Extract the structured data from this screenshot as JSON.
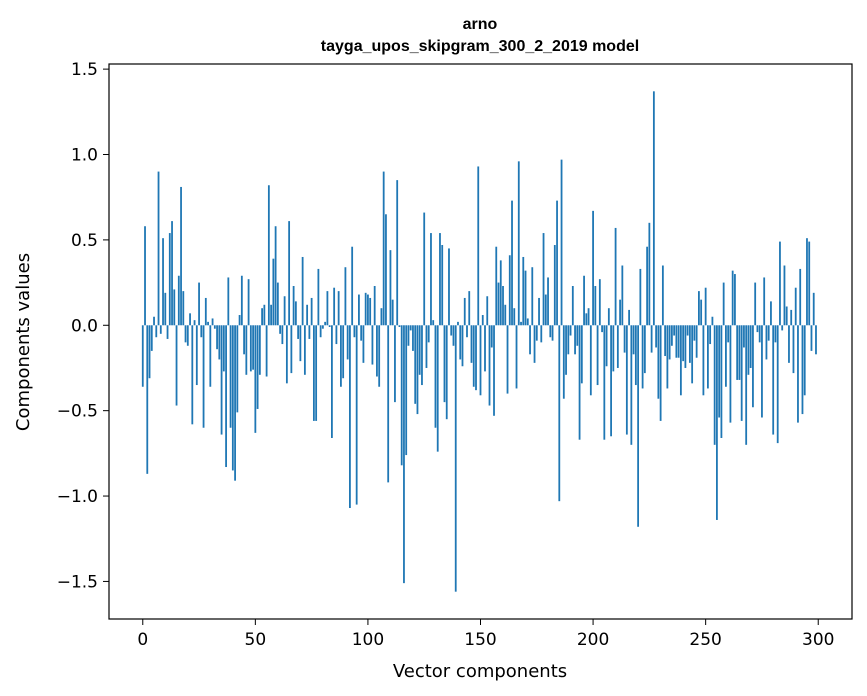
{
  "chart_data": {
    "type": "bar",
    "title_line1": "arno",
    "title_line2": "tayga_upos_skipgram_300_2_2019 model",
    "xlabel": "Vector components",
    "ylabel": "Components values",
    "xlim": [
      -15,
      315
    ],
    "ylim": [
      -1.72,
      1.53
    ],
    "xticks": [
      0,
      50,
      100,
      150,
      200,
      250,
      300
    ],
    "xtick_labels": [
      "0",
      "50",
      "100",
      "150",
      "200",
      "250",
      "300"
    ],
    "yticks": [
      -1.5,
      -1.0,
      -0.5,
      0.0,
      0.5,
      1.0,
      1.5
    ],
    "ytick_labels": [
      "−1.5",
      "−1.0",
      "−0.5",
      "0.0",
      "0.5",
      "1.0",
      "1.5"
    ],
    "bar_color": "#1f77b4",
    "values": [
      -0.36,
      0.58,
      -0.87,
      -0.31,
      -0.15,
      0.05,
      -0.07,
      0.9,
      -0.05,
      0.51,
      0.19,
      -0.08,
      0.54,
      0.61,
      0.21,
      -0.47,
      0.29,
      0.81,
      0.2,
      -0.1,
      -0.12,
      0.07,
      -0.58,
      0.03,
      -0.35,
      0.25,
      -0.07,
      -0.6,
      0.16,
      0.02,
      -0.36,
      0.04,
      -0.02,
      -0.14,
      -0.2,
      -0.64,
      -0.27,
      -0.83,
      0.28,
      -0.6,
      -0.85,
      -0.91,
      -0.51,
      0.06,
      0.29,
      -0.17,
      -0.29,
      0.27,
      -0.27,
      -0.26,
      -0.63,
      -0.49,
      -0.29,
      0.1,
      0.12,
      -0.3,
      0.82,
      0.12,
      0.39,
      0.58,
      0.25,
      -0.05,
      -0.11,
      0.17,
      -0.34,
      0.61,
      -0.28,
      0.23,
      0.14,
      -0.08,
      -0.21,
      0.4,
      -0.29,
      0.12,
      -0.08,
      0.16,
      -0.56,
      -0.56,
      0.33,
      -0.07,
      -0.02,
      0.02,
      0.2,
      -0.01,
      -0.66,
      0.22,
      -0.11,
      0.2,
      -0.36,
      -0.31,
      0.34,
      -0.2,
      -1.07,
      0.46,
      -0.07,
      -1.05,
      0.18,
      -0.09,
      -0.22,
      0.19,
      0.18,
      0.16,
      -0.23,
      0.23,
      -0.3,
      -0.36,
      0.1,
      0.9,
      0.65,
      -0.92,
      0.44,
      0.15,
      -0.45,
      0.85,
      -0.01,
      -0.82,
      -1.51,
      -0.76,
      -0.12,
      -0.03,
      -0.15,
      -0.46,
      -0.52,
      -0.29,
      -0.35,
      0.66,
      -0.25,
      -0.1,
      0.54,
      0.03,
      -0.6,
      -0.74,
      0.54,
      0.47,
      -0.45,
      -0.55,
      0.45,
      -0.06,
      -0.12,
      -1.56,
      0.02,
      -0.2,
      -0.24,
      0.16,
      -0.07,
      0.2,
      -0.22,
      -0.36,
      -0.38,
      0.93,
      -0.41,
      0.06,
      -0.27,
      0.17,
      -0.47,
      -0.13,
      -0.53,
      0.46,
      0.25,
      0.38,
      0.23,
      0.12,
      -0.4,
      0.41,
      0.73,
      0.1,
      -0.37,
      0.96,
      0.02,
      0.4,
      0.32,
      0.04,
      -0.17,
      0.34,
      -0.22,
      -0.09,
      0.16,
      -0.1,
      0.54,
      0.18,
      0.28,
      -0.07,
      -0.09,
      0.47,
      0.73,
      -1.03,
      0.97,
      -0.43,
      -0.29,
      -0.17,
      -0.06,
      0.23,
      -0.17,
      -0.12,
      -0.67,
      -0.34,
      0.29,
      0.07,
      0.1,
      -0.41,
      0.67,
      0.23,
      -0.35,
      0.27,
      -0.04,
      -0.67,
      -0.24,
      0.1,
      -0.65,
      -0.27,
      0.57,
      -0.25,
      0.15,
      0.35,
      -0.16,
      -0.64,
      0.09,
      -0.7,
      -0.17,
      -0.35,
      -1.18,
      0.33,
      -0.37,
      -0.28,
      0.46,
      0.6,
      -0.16,
      1.37,
      -0.13,
      -0.43,
      -0.56,
      0.35,
      -0.18,
      -0.37,
      -0.2,
      -0.12,
      -0.06,
      -0.19,
      -0.19,
      -0.41,
      -0.21,
      -0.25,
      -0.06,
      -0.22,
      -0.34,
      -0.09,
      -0.19,
      0.2,
      0.15,
      -0.41,
      0.22,
      -0.37,
      -0.11,
      0.05,
      -0.7,
      -1.14,
      -0.54,
      -0.66,
      0.25,
      -0.36,
      -0.1,
      -0.57,
      0.32,
      0.3,
      -0.32,
      -0.32,
      -0.56,
      -0.13,
      -0.7,
      -0.29,
      -0.25,
      -0.48,
      0.25,
      -0.04,
      -0.1,
      -0.54,
      0.28,
      -0.2,
      -0.09,
      0.14,
      -0.64,
      -0.1,
      -0.69,
      0.49,
      -0.03,
      0.35,
      0.11,
      -0.22,
      0.09,
      -0.28,
      0.22,
      -0.57,
      0.33,
      -0.52,
      -0.41,
      0.51,
      0.49,
      -0.15,
      0.19,
      -0.17
    ],
    "grid": false,
    "legend": "none"
  }
}
